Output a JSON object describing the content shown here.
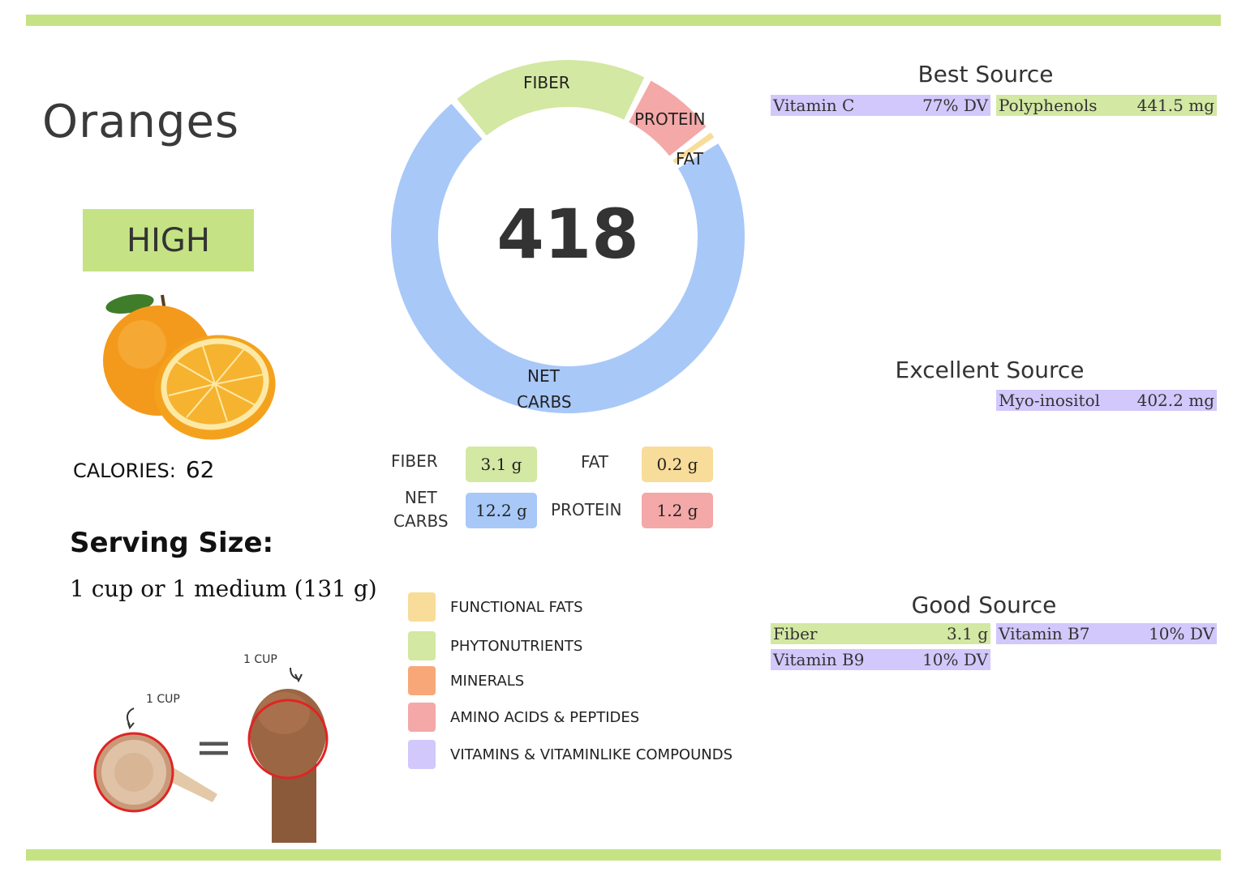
{
  "food": {
    "name": "Oranges",
    "level": "HIGH"
  },
  "calories": {
    "label": "CALORIES:",
    "value": "62"
  },
  "serving": {
    "heading": "Serving Size:",
    "text": "1 cup or 1 medium (131 g)",
    "cup_label_1": "1 CUP",
    "cup_label_2": "1 CUP",
    "equals": "="
  },
  "donut": {
    "center": "418",
    "labels": {
      "fiber": "FIBER",
      "protein": "PROTEIN",
      "fat": "FAT",
      "net_carbs_1": "NET",
      "net_carbs_2": "CARBS"
    },
    "colors": {
      "fiber": "#d3e8a2",
      "protein": "#f4a8a8",
      "fat": "#f8dc99",
      "net_carbs": "#a8c8f8"
    }
  },
  "chart_data": {
    "type": "pie",
    "categories": [
      "FIBER",
      "PROTEIN",
      "FAT",
      "NET CARBS"
    ],
    "values": [
      3.1,
      1.2,
      0.2,
      12.2
    ]
  },
  "macros": {
    "fiber": {
      "label": "FIBER",
      "value": "3.1 g",
      "color": "#d3e8a2"
    },
    "fat": {
      "label": "FAT",
      "value": "0.2 g",
      "color": "#f8dc99"
    },
    "net_carbs": {
      "label_1": "NET",
      "label_2": "CARBS",
      "value": "12.2 g",
      "color": "#a8c8f8"
    },
    "protein": {
      "label": "PROTEIN",
      "value": "1.2 g",
      "color": "#f4a8a8"
    }
  },
  "legend": [
    {
      "label": "FUNCTIONAL  FATS",
      "color": "#f8dc99"
    },
    {
      "label": "PHYTONUTRIENTS",
      "color": "#d3e8a2"
    },
    {
      "label": "MINERALS",
      "color": "#f8a878"
    },
    {
      "label": "AMINO ACIDS & PEPTIDES",
      "color": "#f4a8a8"
    },
    {
      "label": "VITAMINS & VITAMINLIKE COMPOUNDS",
      "color": "#d2c8fb"
    }
  ],
  "best_source": {
    "heading": "Best Source",
    "items": [
      {
        "name": "Vitamin C",
        "value": "77% DV"
      },
      {
        "name": "Polyphenols",
        "value": "441.5 mg"
      }
    ]
  },
  "excellent_source": {
    "heading": "Excellent Source",
    "items": [
      {
        "name": "Myo-inositol",
        "value": "402.2 mg"
      }
    ]
  },
  "good_source": {
    "heading": "Good Source",
    "items": [
      {
        "name": "Fiber",
        "value": "3.1 g"
      },
      {
        "name": "Vitamin B7",
        "value": "10% DV"
      },
      {
        "name": "Vitamin B9",
        "value": "10% DV"
      }
    ]
  }
}
